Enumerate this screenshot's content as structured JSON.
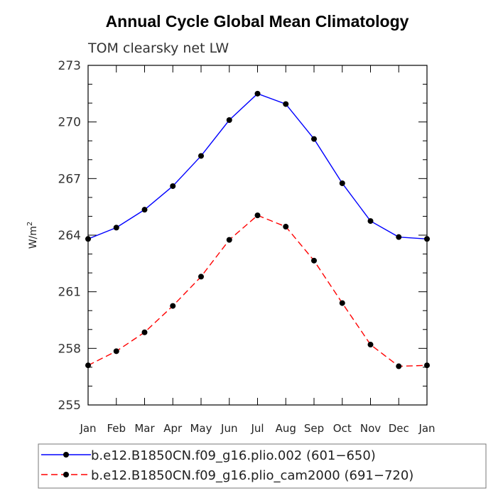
{
  "chart_data": {
    "type": "line",
    "title": "Annual Cycle Global Mean Climatology",
    "subtitle": "TOM clearsky net LW",
    "ylabel": "W/m",
    "ylabel_sup": "2",
    "xlabel": "",
    "categories": [
      "Jan",
      "Feb",
      "Mar",
      "Apr",
      "May",
      "Jun",
      "Jul",
      "Aug",
      "Sep",
      "Oct",
      "Nov",
      "Dec",
      "Jan"
    ],
    "ylim": [
      255,
      273
    ],
    "yticks": [
      "255",
      "258",
      "261",
      "264",
      "267",
      "270",
      "273"
    ],
    "ytick_values": [
      255,
      258,
      261,
      264,
      267,
      270,
      273
    ],
    "series": [
      {
        "name": "b.e12.B1850CN.f09_g16.plio.002 (601−650)",
        "color": "#0000ff",
        "dash": "solid",
        "values": [
          263.8,
          264.4,
          265.35,
          266.6,
          268.2,
          270.1,
          271.5,
          270.95,
          269.1,
          266.75,
          264.75,
          263.9,
          263.8
        ]
      },
      {
        "name": "b.e12.B1850CN.f09_g16.plio_cam2000 (691−720)",
        "color": "#ff0000",
        "dash": "dashed",
        "values": [
          257.1,
          257.85,
          258.85,
          260.25,
          261.8,
          263.75,
          265.05,
          264.45,
          262.65,
          260.4,
          258.2,
          257.05,
          257.1
        ]
      }
    ],
    "legend_position": "bottom"
  }
}
